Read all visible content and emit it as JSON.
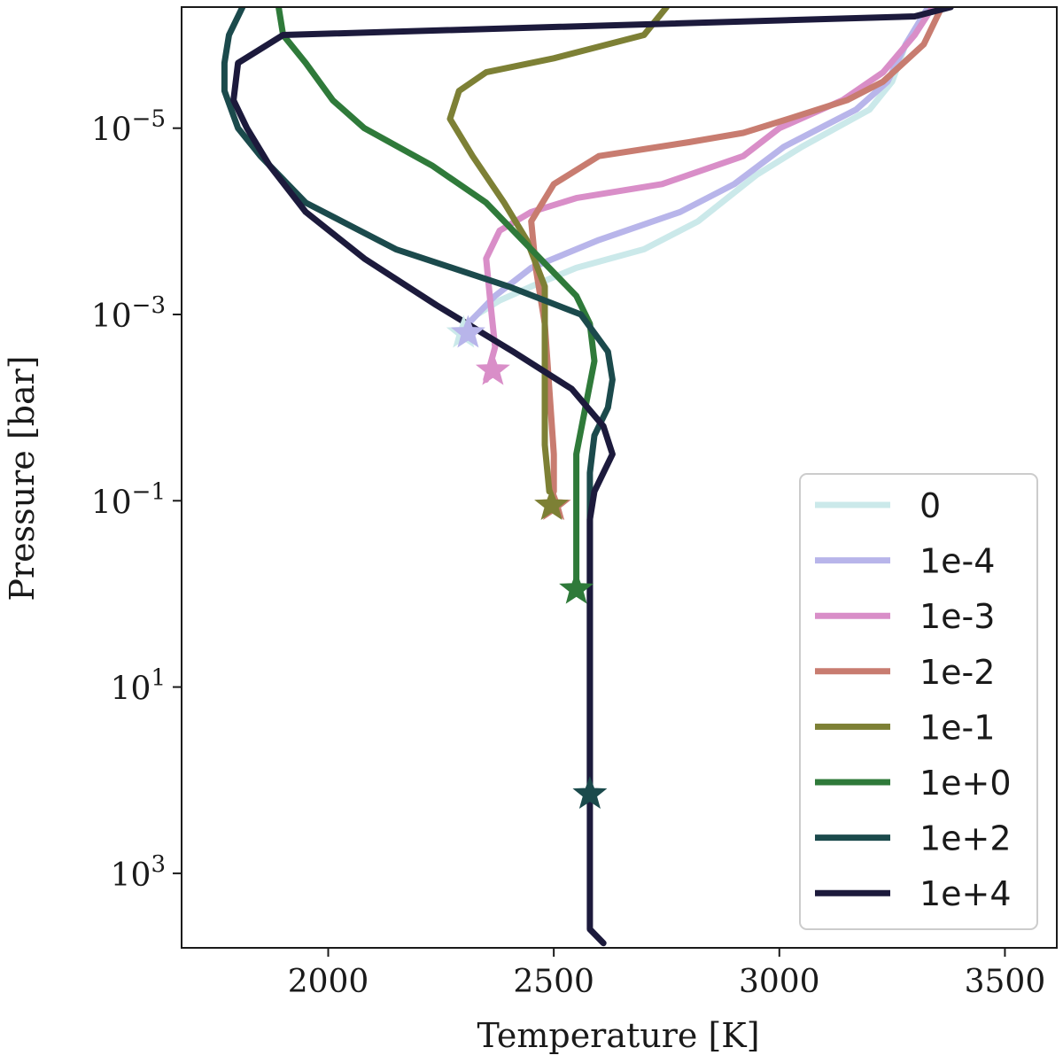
{
  "chart_data": {
    "type": "line",
    "xlabel": "Temperature [K]",
    "ylabel": "Pressure [bar]",
    "xlim": [
      1675,
      3615
    ],
    "ylim_log10": [
      -6.3,
      3.8
    ],
    "y_scale": "log",
    "y_inverted": true,
    "x_ticks": [
      2000,
      2500,
      3000,
      3500
    ],
    "y_ticks": [
      {
        "base": "10",
        "exp": "−5",
        "value": -5
      },
      {
        "base": "10",
        "exp": "−3",
        "value": -3
      },
      {
        "base": "10",
        "exp": "−1",
        "value": -1
      },
      {
        "base": "10",
        "exp": "1",
        "value": 1
      },
      {
        "base": "10",
        "exp": "3",
        "value": 3
      }
    ],
    "legend_position": "lower right",
    "grid": false,
    "series": [
      {
        "name": "0",
        "color": "#cbe9ea",
        "points": [
          [
            3330,
            -6.3
          ],
          [
            3280,
            -5.9
          ],
          [
            3250,
            -5.5
          ],
          [
            3200,
            -5.2
          ],
          [
            3050,
            -4.8
          ],
          [
            2950,
            -4.5
          ],
          [
            2820,
            -4.0
          ],
          [
            2700,
            -3.7
          ],
          [
            2550,
            -3.5
          ],
          [
            2450,
            -3.3
          ],
          [
            2380,
            -3.15
          ],
          [
            2330,
            -3.0
          ],
          [
            2300,
            -2.85
          ]
        ],
        "star": [
          2300,
          -2.8
        ]
      },
      {
        "name": "1e-4",
        "color": "#b8b5ea",
        "points": [
          [
            3330,
            -6.3
          ],
          [
            3280,
            -5.9
          ],
          [
            3240,
            -5.5
          ],
          [
            3170,
            -5.2
          ],
          [
            3010,
            -4.8
          ],
          [
            2900,
            -4.4
          ],
          [
            2780,
            -4.1
          ],
          [
            2600,
            -3.8
          ],
          [
            2450,
            -3.5
          ],
          [
            2370,
            -3.2
          ],
          [
            2330,
            -3.0
          ],
          [
            2310,
            -2.9
          ]
        ],
        "star": [
          2310,
          -2.8
        ]
      },
      {
        "name": "1e-3",
        "color": "#d98ec8",
        "points": [
          [
            3340,
            -6.3
          ],
          [
            3300,
            -6.0
          ],
          [
            3230,
            -5.6
          ],
          [
            3140,
            -5.3
          ],
          [
            3000,
            -5.0
          ],
          [
            2920,
            -4.7
          ],
          [
            2740,
            -4.4
          ],
          [
            2550,
            -4.25
          ],
          [
            2450,
            -4.1
          ],
          [
            2380,
            -3.9
          ],
          [
            2350,
            -3.6
          ],
          [
            2360,
            -3.1
          ],
          [
            2370,
            -2.65
          ],
          [
            2350,
            -2.3
          ]
        ],
        "star": [
          2365,
          -2.4
        ]
      },
      {
        "name": "1e-2",
        "color": "#c87c70",
        "points": [
          [
            3360,
            -6.3
          ],
          [
            3320,
            -5.9
          ],
          [
            3230,
            -5.5
          ],
          [
            3150,
            -5.3
          ],
          [
            3020,
            -5.1
          ],
          [
            2920,
            -4.95
          ],
          [
            2800,
            -4.85
          ],
          [
            2600,
            -4.7
          ],
          [
            2500,
            -4.4
          ],
          [
            2450,
            -4.0
          ],
          [
            2460,
            -3.5
          ],
          [
            2480,
            -2.9
          ],
          [
            2490,
            -2.2
          ],
          [
            2500,
            -1.5
          ],
          [
            2500,
            -1.1
          ]
        ],
        "star": [
          2500,
          -0.95
        ]
      },
      {
        "name": "1e-1",
        "color": "#7d8035",
        "points": [
          [
            2750,
            -6.3
          ],
          [
            2700,
            -6.0
          ],
          [
            2500,
            -5.75
          ],
          [
            2350,
            -5.6
          ],
          [
            2290,
            -5.4
          ],
          [
            2270,
            -5.1
          ],
          [
            2320,
            -4.7
          ],
          [
            2390,
            -4.2
          ],
          [
            2440,
            -3.8
          ],
          [
            2480,
            -3.3
          ],
          [
            2480,
            -2.8
          ],
          [
            2480,
            -2.2
          ],
          [
            2480,
            -1.6
          ],
          [
            2490,
            -1.1
          ]
        ],
        "star": [
          2495,
          -0.95
        ]
      },
      {
        "name": "1e+0",
        "color": "#2f7a3a",
        "points": [
          [
            1890,
            -6.3
          ],
          [
            1900,
            -6.0
          ],
          [
            1950,
            -5.7
          ],
          [
            2010,
            -5.3
          ],
          [
            2080,
            -5.0
          ],
          [
            2230,
            -4.6
          ],
          [
            2350,
            -4.2
          ],
          [
            2450,
            -3.7
          ],
          [
            2550,
            -3.2
          ],
          [
            2580,
            -2.9
          ],
          [
            2590,
            -2.5
          ],
          [
            2570,
            -2.0
          ],
          [
            2550,
            -1.5
          ],
          [
            2550,
            -1.0
          ],
          [
            2550,
            -0.5
          ],
          [
            2550,
            -0.05
          ]
        ],
        "star": [
          2550,
          -0.05
        ]
      },
      {
        "name": "1e+2",
        "color": "#1b4a4c",
        "points": [
          [
            1810,
            -6.3
          ],
          [
            1780,
            -6.0
          ],
          [
            1770,
            -5.7
          ],
          [
            1770,
            -5.4
          ],
          [
            1800,
            -5.0
          ],
          [
            1850,
            -4.7
          ],
          [
            1950,
            -4.2
          ],
          [
            2150,
            -3.7
          ],
          [
            2400,
            -3.3
          ],
          [
            2560,
            -3.0
          ],
          [
            2620,
            -2.6
          ],
          [
            2630,
            -2.3
          ],
          [
            2620,
            -2.0
          ],
          [
            2590,
            -1.7
          ],
          [
            2580,
            -1.3
          ],
          [
            2580,
            -0.5
          ],
          [
            2580,
            0.5
          ],
          [
            2580,
            1.5
          ],
          [
            2580,
            2.15
          ]
        ],
        "star": [
          2580,
          2.15
        ]
      },
      {
        "name": "1e+4",
        "color": "#1c1a3c",
        "points": [
          [
            3380,
            -6.3
          ],
          [
            3300,
            -6.2
          ],
          [
            1900,
            -6.0
          ],
          [
            1800,
            -5.7
          ],
          [
            1790,
            -5.3
          ],
          [
            1820,
            -5.0
          ],
          [
            1870,
            -4.6
          ],
          [
            1950,
            -4.1
          ],
          [
            2080,
            -3.6
          ],
          [
            2240,
            -3.1
          ],
          [
            2410,
            -2.6
          ],
          [
            2540,
            -2.2
          ],
          [
            2610,
            -1.8
          ],
          [
            2630,
            -1.5
          ],
          [
            2610,
            -1.3
          ],
          [
            2590,
            -1.1
          ],
          [
            2580,
            -0.8
          ],
          [
            2580,
            0
          ],
          [
            2580,
            1
          ],
          [
            2580,
            2
          ],
          [
            2580,
            3
          ],
          [
            2580,
            3.6
          ],
          [
            2610,
            3.75
          ]
        ],
        "star": null
      }
    ]
  }
}
